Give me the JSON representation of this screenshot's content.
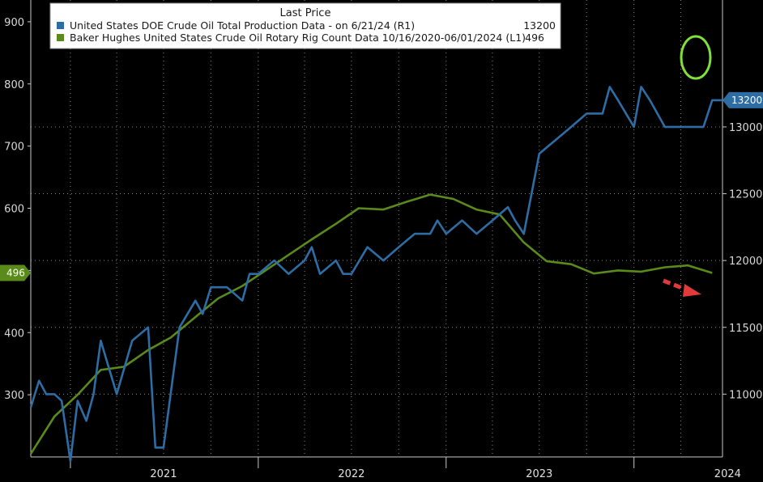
{
  "chart_data": {
    "type": "line",
    "legend": {
      "title": "Last Price",
      "entries": [
        {
          "label": "United States DOE Crude Oil Total Production Data -  on 6/21/24  (R1)",
          "value": "13200",
          "color": "#2e6da4"
        },
        {
          "label": "Baker Hughes United States Crude Oil Rotary Rig Count Data 10/16/2020-06/01/2024  (L1)",
          "value": "496",
          "color": "#5a8a1a"
        }
      ]
    },
    "x_ticks": [
      "2021",
      "2022",
      "2023",
      "2024"
    ],
    "x_range": [
      "2020-10-16",
      "2024-06-21"
    ],
    "y_left": {
      "ticks": [
        "300",
        "400",
        "500",
        "600",
        "700",
        "800",
        "900"
      ],
      "range": [
        200,
        935
      ]
    },
    "y_right": {
      "ticks": [
        "11000",
        "11500",
        "12000",
        "12500",
        "13000"
      ],
      "range": [
        10530,
        13950
      ]
    },
    "last_value_tags": {
      "left": "496",
      "right": "13200"
    },
    "series": [
      {
        "name": "Baker Hughes United States Crude Oil Rotary Rig Count Data 10/16/2020-06/01/2024",
        "axis": "left",
        "color": "#5a8a1a",
        "x": [
          "2020-10-16",
          "2020-12-01",
          "2021-01-15",
          "2021-03-01",
          "2021-04-15",
          "2021-06-01",
          "2021-07-15",
          "2021-09-01",
          "2021-10-15",
          "2021-12-01",
          "2022-01-15",
          "2022-03-01",
          "2022-04-15",
          "2022-06-01",
          "2022-07-15",
          "2022-09-01",
          "2022-10-15",
          "2022-12-01",
          "2023-01-15",
          "2023-03-01",
          "2023-04-15",
          "2023-06-01",
          "2023-07-15",
          "2023-09-01",
          "2023-10-15",
          "2023-12-01",
          "2024-01-15",
          "2024-03-01",
          "2024-04-15",
          "2024-06-01"
        ],
        "values": [
          205,
          265,
          300,
          340,
          345,
          372,
          392,
          425,
          455,
          475,
          500,
          525,
          550,
          575,
          600,
          598,
          610,
          622,
          615,
          598,
          590,
          545,
          515,
          510,
          495,
          500,
          498,
          505,
          508,
          496
        ]
      },
      {
        "name": "United States DOE Crude Oil Total Production Data",
        "axis": "right",
        "color": "#2e6da4",
        "x": [
          "2020-10-16",
          "2020-11-01",
          "2020-11-15",
          "2020-12-01",
          "2020-12-15",
          "2021-01-01",
          "2021-01-15",
          "2021-02-01",
          "2021-02-15",
          "2021-03-01",
          "2021-04-01",
          "2021-05-01",
          "2021-06-01",
          "2021-06-15",
          "2021-07-01",
          "2021-08-01",
          "2021-09-01",
          "2021-09-15",
          "2021-10-01",
          "2021-11-01",
          "2021-12-01",
          "2021-12-15",
          "2022-01-01",
          "2022-02-01",
          "2022-03-01",
          "2022-04-01",
          "2022-04-15",
          "2022-05-01",
          "2022-06-01",
          "2022-06-15",
          "2022-07-01",
          "2022-08-01",
          "2022-09-01",
          "2022-10-01",
          "2022-11-01",
          "2022-12-01",
          "2022-12-15",
          "2023-01-01",
          "2023-02-01",
          "2023-03-01",
          "2023-04-01",
          "2023-05-01",
          "2023-05-15",
          "2023-06-01",
          "2023-07-01",
          "2023-08-01",
          "2023-09-01",
          "2023-10-01",
          "2023-11-01",
          "2023-11-15",
          "2023-12-01",
          "2024-01-01",
          "2024-01-15",
          "2024-02-01",
          "2024-03-01",
          "2024-04-01",
          "2024-05-01",
          "2024-05-15",
          "2024-06-01",
          "2024-06-21"
        ],
        "values": [
          10900,
          11100,
          11000,
          11000,
          10950,
          10500,
          10950,
          10800,
          11000,
          11400,
          11000,
          11400,
          11500,
          10600,
          10600,
          11500,
          11700,
          11600,
          11800,
          11800,
          11700,
          11900,
          11900,
          12000,
          11900,
          12000,
          12100,
          11900,
          12000,
          11900,
          11900,
          12100,
          12000,
          12100,
          12200,
          12200,
          12300,
          12200,
          12300,
          12200,
          12300,
          12400,
          12300,
          12200,
          12800,
          12900,
          13000,
          13100,
          13100,
          13300,
          13200,
          13000,
          13300,
          13200,
          13000,
          13000,
          13000,
          13000,
          13200,
          13200
        ]
      }
    ]
  }
}
